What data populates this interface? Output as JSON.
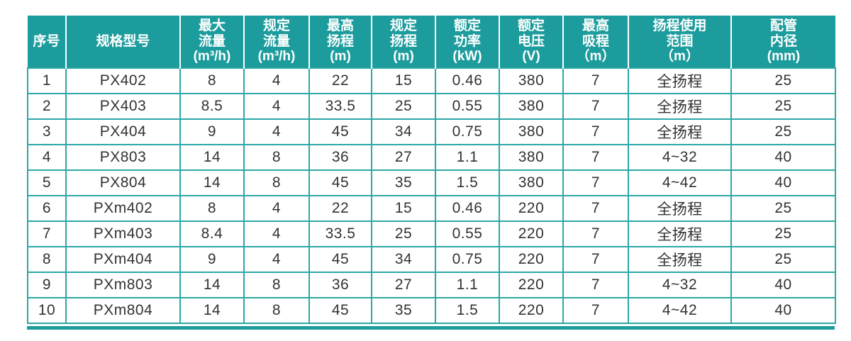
{
  "colors": {
    "header_background": "#1d9c9d",
    "grid_line": "#2ba8a6",
    "header_text": "#ffffff",
    "body_text": "#333333",
    "page_background": "#ffffff"
  },
  "table": {
    "headers": [
      "序号",
      "规格型号",
      "最大\n流量\n(m³/h)",
      "规定\n流量\n(m³/h)",
      "最高\n扬程\n(m)",
      "规定\n扬程\n(m)",
      "额定\n功率\n(kW)",
      "额定\n电压\n(V)",
      "最高\n吸程\n（m）",
      "扬程使用\n范围\n（m）",
      "配管\n内径\n(mm)"
    ],
    "rows": [
      [
        "1",
        "PX402",
        "8",
        "4",
        "22",
        "15",
        "0.46",
        "380",
        "7",
        "全扬程",
        "25"
      ],
      [
        "2",
        "PX403",
        "8.5",
        "4",
        "33.5",
        "25",
        "0.55",
        "380",
        "7",
        "全扬程",
        "25"
      ],
      [
        "3",
        "PX404",
        "9",
        "4",
        "45",
        "34",
        "0.75",
        "380",
        "7",
        "全扬程",
        "25"
      ],
      [
        "4",
        "PX803",
        "14",
        "8",
        "36",
        "27",
        "1.1",
        "380",
        "7",
        "4~32",
        "40"
      ],
      [
        "5",
        "PX804",
        "14",
        "8",
        "45",
        "35",
        "1.5",
        "380",
        "7",
        "4~42",
        "40"
      ],
      [
        "6",
        "PXm402",
        "8",
        "4",
        "22",
        "15",
        "0.46",
        "220",
        "7",
        "全扬程",
        "25"
      ],
      [
        "7",
        "PXm403",
        "8.4",
        "4",
        "33.5",
        "25",
        "0.55",
        "220",
        "7",
        "全扬程",
        "25"
      ],
      [
        "8",
        "PXm404",
        "9",
        "4",
        "45",
        "34",
        "0.75",
        "220",
        "7",
        "全扬程",
        "25"
      ],
      [
        "9",
        "PXm803",
        "14",
        "8",
        "36",
        "27",
        "1.1",
        "220",
        "7",
        "4~32",
        "40"
      ],
      [
        "10",
        "PXm804",
        "14",
        "8",
        "45",
        "35",
        "1.5",
        "220",
        "7",
        "4~42",
        "40"
      ]
    ]
  }
}
